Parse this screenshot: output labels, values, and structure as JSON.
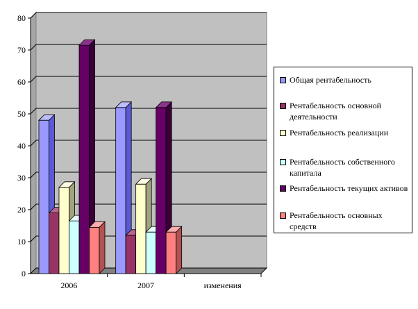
{
  "chart_data": {
    "type": "bar",
    "categories": [
      "2006",
      "2007",
      "изменения"
    ],
    "series": [
      {
        "name": "Общая рентабельность",
        "values": [
          48,
          52,
          0
        ],
        "color": "#9999ff",
        "side": "#5a5ad6",
        "top": "#bdbdff"
      },
      {
        "name": "Рентабельность основной деятельности",
        "values": [
          19,
          12,
          0
        ],
        "color": "#993366",
        "side": "#5e1f3f",
        "top": "#b8668e"
      },
      {
        "name": "Рентабельность реализации",
        "values": [
          27,
          28,
          0
        ],
        "color": "#ffffcc",
        "side": "#a3a37e",
        "top": "#ffffe6"
      },
      {
        "name": "Рентабельность собственного капитала",
        "values": [
          16.5,
          13,
          0
        ],
        "color": "#ccffff",
        "side": "#80a8a8",
        "top": "#e6ffff"
      },
      {
        "name": "Рентабельность текущих активов",
        "values": [
          71.5,
          52,
          0
        ],
        "color": "#660066",
        "side": "#3a003a",
        "top": "#8c338c"
      },
      {
        "name": "Рентабельность основных средств",
        "values": [
          14.5,
          13,
          0
        ],
        "color": "#ff8080",
        "side": "#b35252",
        "top": "#ffadad"
      }
    ],
    "ylim": [
      0,
      80
    ],
    "yticks": [
      0,
      10,
      20,
      30,
      40,
      50,
      60,
      70,
      80
    ],
    "grid": true,
    "legend": "right",
    "plot_colors": {
      "back_wall": "#c0c0c0",
      "floor": "#808080",
      "grid": "#000000"
    }
  }
}
